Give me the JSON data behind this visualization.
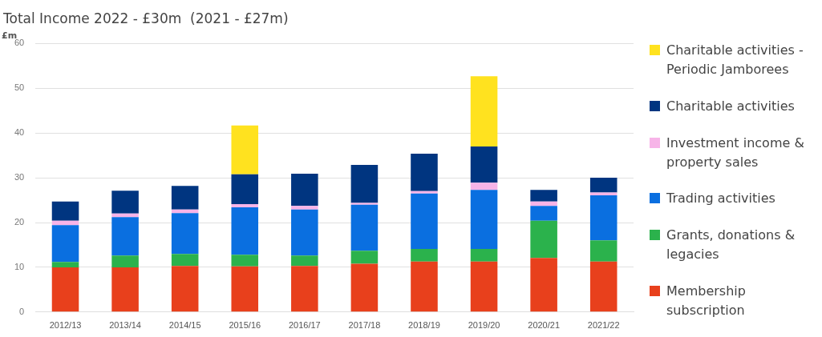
{
  "chart_data": {
    "type": "bar",
    "stacked": true,
    "title": "Total Income 2022 - £30m  (2021 - £27m)",
    "ylabel": "£m",
    "categories": [
      "2012/13",
      "2013/14",
      "2014/15",
      "2015/16",
      "2016/17",
      "2017/18",
      "2018/19",
      "2019/20",
      "2020/21",
      "2021/22"
    ],
    "series": [
      {
        "name": "Membership subscription",
        "color": "#e8401c",
        "values": [
          10,
          10,
          10.3,
          10.2,
          10.3,
          10.8,
          11.3,
          11.3,
          12.1,
          11.3
        ]
      },
      {
        "name": "Grants, donations & legacies",
        "color": "#2bb24c",
        "values": [
          1.2,
          2.6,
          2.7,
          2.6,
          2.3,
          2.9,
          2.8,
          2.8,
          8.3,
          4.7
        ]
      },
      {
        "name": "Trading activities",
        "color": "#0a6fe0",
        "values": [
          8.2,
          8.6,
          9.1,
          10.6,
          10.3,
          10.3,
          12.4,
          13.2,
          3.3,
          10.1
        ]
      },
      {
        "name": "Investment income & property sales",
        "color": "#f7b4e8",
        "values": [
          1.0,
          0.8,
          0.8,
          0.7,
          0.8,
          0.4,
          0.5,
          1.6,
          1.0,
          0.6
        ]
      },
      {
        "name": "Charitable activities",
        "color": "#003580",
        "values": [
          4.3,
          5.1,
          5.3,
          6.7,
          7.2,
          8.5,
          8.4,
          8.1,
          2.6,
          3.3
        ]
      },
      {
        "name": "Charitable activities - Periodic Jamborees",
        "color": "#ffe21f",
        "values": [
          null,
          null,
          null,
          10.9,
          null,
          null,
          null,
          15.7,
          null,
          null
        ]
      }
    ],
    "ylim": [
      0,
      60
    ],
    "yticks": [
      0,
      10,
      20,
      30,
      40,
      50,
      60
    ],
    "grid": "y",
    "legend": "right"
  }
}
